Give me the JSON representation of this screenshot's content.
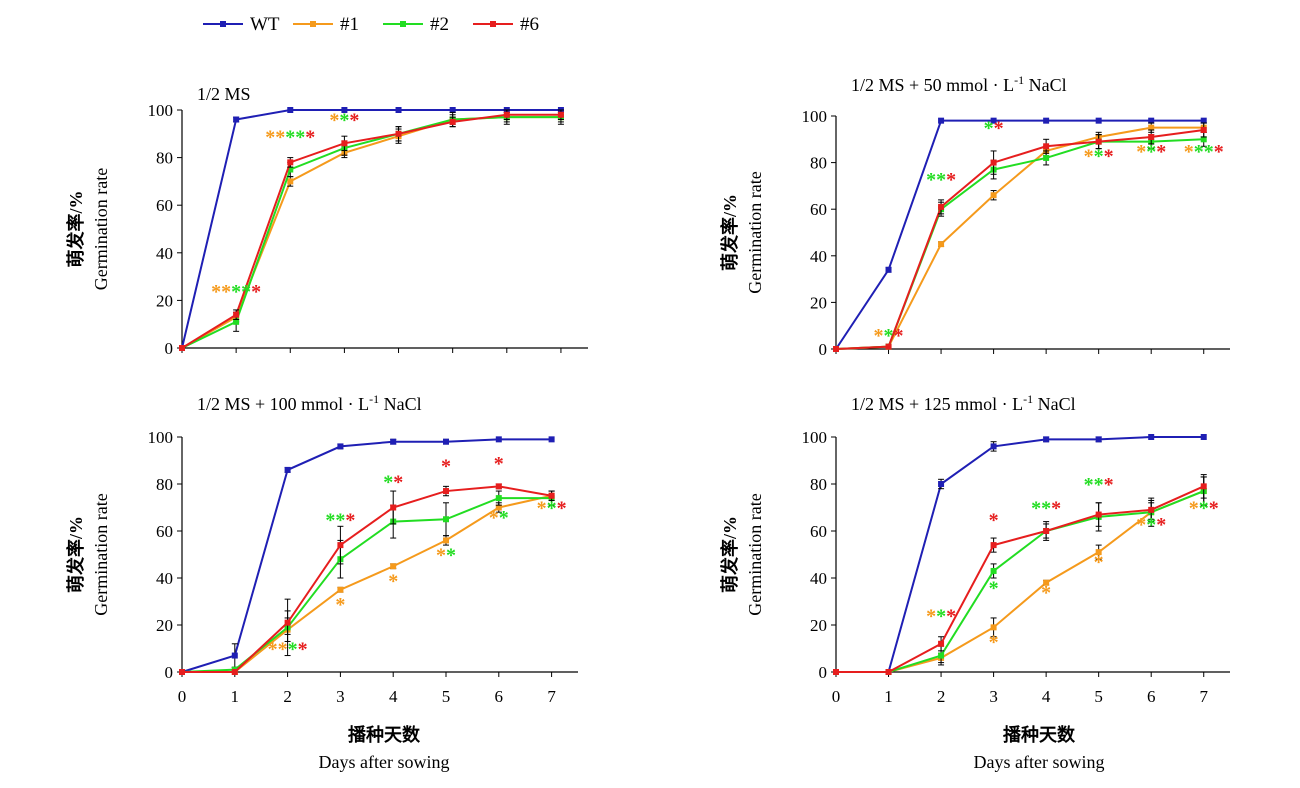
{
  "colors": {
    "WT": "#1f1fb4",
    "#1": "#f59a1c",
    "#2": "#22dd22",
    "#6": "#e61e1e",
    "axis": "#000000"
  },
  "legend": [
    {
      "name": "WT",
      "color": "#1f1fb4"
    },
    {
      "name": "#1",
      "color": "#f59a1c"
    },
    {
      "name": "#2",
      "color": "#22dd22"
    },
    {
      "name": "#6",
      "color": "#e61e1e"
    }
  ],
  "axis_text": {
    "ylabel_cn": "萌发率/%",
    "ylabel_en": "Germination rate",
    "xlabel_cn": "播种天数",
    "xlabel_en": "Days after sowing"
  },
  "chart_data": [
    {
      "type": "line",
      "title": "1/2 MS",
      "x": [
        0,
        1,
        2,
        3,
        4,
        5,
        6,
        7
      ],
      "xlim": [
        0,
        7.5
      ],
      "ylim": [
        0,
        100
      ],
      "yticks": [
        0,
        20,
        40,
        60,
        80,
        100
      ],
      "xticks_labeled": false,
      "series": [
        {
          "name": "WT",
          "values": [
            0,
            96,
            100,
            100,
            100,
            100,
            100,
            100
          ],
          "err": [
            0,
            1,
            0,
            0,
            0,
            0,
            0,
            0
          ]
        },
        {
          "name": "#1",
          "values": [
            0,
            13,
            70,
            82,
            89,
            96,
            97,
            97
          ],
          "err": [
            0,
            2,
            2,
            2,
            3,
            2,
            2,
            2
          ]
        },
        {
          "name": "#2",
          "values": [
            0,
            11,
            75,
            84,
            90,
            96,
            97,
            97
          ],
          "err": [
            0,
            4,
            3,
            3,
            3,
            3,
            3,
            3
          ]
        },
        {
          "name": "#6",
          "values": [
            0,
            14,
            78,
            86,
            90,
            95,
            98,
            98
          ],
          "err": [
            0,
            2,
            2,
            3,
            3,
            2,
            2,
            2
          ]
        }
      ],
      "annotations": [
        {
          "x": 1,
          "y": 21,
          "marks": [
            [
              "#1",
              "**"
            ],
            [
              "#2",
              "**"
            ],
            [
              "#6",
              "*"
            ]
          ]
        },
        {
          "x": 2,
          "y": 86,
          "marks": [
            [
              "#1",
              "**"
            ],
            [
              "#2",
              "**"
            ],
            [
              "#6",
              "*"
            ]
          ]
        },
        {
          "x": 3,
          "y": 93,
          "marks": [
            [
              "#1",
              "*"
            ],
            [
              "#2",
              "*"
            ],
            [
              "#6",
              "*"
            ]
          ]
        }
      ]
    },
    {
      "type": "line",
      "title": "1/2 MS + 50 mmol · L-1 NaCl",
      "title_main": "1/2 MS + 50 mmol · L",
      "title_sup": "-1",
      "title_end": " NaCl",
      "x": [
        0,
        1,
        2,
        3,
        4,
        5,
        6,
        7
      ],
      "xlim": [
        0,
        7.5
      ],
      "ylim": [
        0,
        100
      ],
      "yticks": [
        0,
        20,
        40,
        60,
        80,
        100
      ],
      "xticks_labeled": false,
      "series": [
        {
          "name": "WT",
          "values": [
            0,
            34,
            98,
            98,
            98,
            98,
            98,
            98
          ],
          "err": [
            0,
            1,
            0,
            0,
            0,
            0,
            0,
            0
          ]
        },
        {
          "name": "#1",
          "values": [
            0,
            1,
            45,
            66,
            85,
            91,
            95,
            95
          ],
          "err": [
            0,
            0,
            1,
            2,
            2,
            2,
            2,
            2
          ]
        },
        {
          "name": "#2",
          "values": [
            0,
            1,
            60,
            77,
            82,
            89,
            89,
            90
          ],
          "err": [
            0,
            0,
            3,
            4,
            3,
            3,
            3,
            3
          ]
        },
        {
          "name": "#6",
          "values": [
            0,
            1,
            61,
            80,
            87,
            89,
            91,
            94
          ],
          "err": [
            0,
            0,
            3,
            5,
            3,
            3,
            3,
            3
          ]
        }
      ],
      "annotations": [
        {
          "x": 1,
          "y": 3,
          "marks": [
            [
              "#1",
              "*"
            ],
            [
              "#2",
              "*"
            ],
            [
              "#6",
              "*"
            ]
          ]
        },
        {
          "x": 2,
          "y": 70,
          "marks": [
            [
              "#1",
              ""
            ],
            [
              "#2",
              "**"
            ],
            [
              "#6",
              "*"
            ]
          ]
        },
        {
          "x": 3,
          "y": 92,
          "marks": [
            [
              "#1",
              ""
            ],
            [
              "#2",
              "*"
            ],
            [
              "#6",
              "*"
            ]
          ]
        },
        {
          "x": 5,
          "y": 80,
          "marks": [
            [
              "#1",
              "*"
            ],
            [
              "#2",
              "*"
            ],
            [
              "#6",
              "*"
            ]
          ]
        },
        {
          "x": 6,
          "y": 82,
          "marks": [
            [
              "#1",
              "*"
            ],
            [
              "#2",
              "*"
            ],
            [
              "#6",
              "*"
            ]
          ]
        },
        {
          "x": 7,
          "y": 82,
          "marks": [
            [
              "#1",
              "*"
            ],
            [
              "#2",
              "**"
            ],
            [
              "#6",
              "*"
            ]
          ]
        }
      ]
    },
    {
      "type": "line",
      "title": "1/2 MS + 100 mmol · L-1 NaCl",
      "title_main": "1/2 MS + 100 mmol · L",
      "title_sup": "-1",
      "title_end": " NaCl",
      "x": [
        0,
        1,
        2,
        3,
        4,
        5,
        6,
        7
      ],
      "xlim": [
        0,
        7.5
      ],
      "ylim": [
        0,
        100
      ],
      "yticks": [
        0,
        20,
        40,
        60,
        80,
        100
      ],
      "xticks_labeled": true,
      "series": [
        {
          "name": "WT",
          "values": [
            0,
            7,
            86,
            96,
            98,
            98,
            99,
            99
          ],
          "err": [
            0,
            5,
            1,
            1,
            1,
            1,
            0,
            0
          ]
        },
        {
          "name": "#1",
          "values": [
            0,
            0,
            18,
            35,
            45,
            56,
            70,
            75
          ],
          "err": [
            0,
            0,
            5,
            1,
            1,
            2,
            2,
            2
          ]
        },
        {
          "name": "#2",
          "values": [
            0,
            1,
            19,
            48,
            64,
            65,
            74,
            74
          ],
          "err": [
            0,
            1,
            12,
            8,
            7,
            7,
            3,
            3
          ]
        },
        {
          "name": "#6",
          "values": [
            0,
            0,
            21,
            54,
            70,
            77,
            79,
            75
          ],
          "err": [
            0,
            0,
            5,
            8,
            7,
            2,
            1,
            2
          ]
        }
      ],
      "annotations": [
        {
          "x": 2,
          "y": 7,
          "marks": [
            [
              "#1",
              "**"
            ],
            [
              "#2",
              "*"
            ],
            [
              "#6",
              "*"
            ]
          ]
        },
        {
          "x": 3,
          "y": 62,
          "marks": [
            [
              "#1",
              ""
            ],
            [
              "#2",
              "**"
            ],
            [
              "#6",
              "*"
            ]
          ]
        },
        {
          "x": 3,
          "y": 26,
          "marks": [
            [
              "#1",
              "*"
            ]
          ]
        },
        {
          "x": 4,
          "y": 78,
          "marks": [
            [
              "#1",
              ""
            ],
            [
              "#2",
              "*"
            ],
            [
              "#6",
              "*"
            ]
          ]
        },
        {
          "x": 4,
          "y": 36,
          "marks": [
            [
              "#1",
              "*"
            ]
          ]
        },
        {
          "x": 5,
          "y": 85,
          "marks": [
            [
              "#6",
              "*"
            ]
          ]
        },
        {
          "x": 5,
          "y": 47,
          "marks": [
            [
              "#1",
              "*"
            ],
            [
              "#2",
              "*"
            ]
          ]
        },
        {
          "x": 6,
          "y": 86,
          "marks": [
            [
              "#6",
              "*"
            ]
          ]
        },
        {
          "x": 6,
          "y": 63,
          "marks": [
            [
              "#1",
              "*"
            ],
            [
              "#2",
              "*"
            ]
          ]
        },
        {
          "x": 7,
          "y": 67,
          "marks": [
            [
              "#1",
              "*"
            ],
            [
              "#2",
              "*"
            ],
            [
              "#6",
              "*"
            ]
          ]
        }
      ]
    },
    {
      "type": "line",
      "title": "1/2 MS + 125 mmol · L-1 NaCl",
      "title_main": "1/2 MS + 125 mmol · L",
      "title_sup": "-1",
      "title_end": " NaCl",
      "x": [
        0,
        1,
        2,
        3,
        4,
        5,
        6,
        7
      ],
      "xlim": [
        0,
        7.5
      ],
      "ylim": [
        0,
        100
      ],
      "yticks": [
        0,
        20,
        40,
        60,
        80,
        100
      ],
      "xticks_labeled": true,
      "series": [
        {
          "name": "WT",
          "values": [
            0,
            0,
            80,
            96,
            99,
            99,
            100,
            100
          ],
          "err": [
            0,
            0,
            2,
            2,
            1,
            1,
            0,
            0
          ]
        },
        {
          "name": "#1",
          "values": [
            0,
            0,
            6,
            19,
            38,
            51,
            68,
            77
          ],
          "err": [
            0,
            0,
            2,
            4,
            1,
            3,
            4,
            6
          ]
        },
        {
          "name": "#2",
          "values": [
            0,
            0,
            7,
            43,
            60,
            66,
            68,
            77
          ],
          "err": [
            0,
            0,
            4,
            3,
            4,
            6,
            6,
            6
          ]
        },
        {
          "name": "#6",
          "values": [
            0,
            0,
            12,
            54,
            60,
            67,
            69,
            79
          ],
          "err": [
            0,
            0,
            3,
            3,
            3,
            5,
            4,
            5
          ]
        }
      ],
      "annotations": [
        {
          "x": 2,
          "y": 21,
          "marks": [
            [
              "#1",
              "*"
            ],
            [
              "#2",
              "*"
            ],
            [
              "#6",
              "*"
            ]
          ]
        },
        {
          "x": 3,
          "y": 62,
          "marks": [
            [
              "#6",
              "*"
            ]
          ]
        },
        {
          "x": 3,
          "y": 33,
          "marks": [
            [
              "#2",
              "*"
            ]
          ]
        },
        {
          "x": 3,
          "y": 10,
          "marks": [
            [
              "#1",
              "*"
            ]
          ]
        },
        {
          "x": 4,
          "y": 67,
          "marks": [
            [
              "#2",
              "**"
            ],
            [
              "#6",
              "*"
            ]
          ]
        },
        {
          "x": 4,
          "y": 31,
          "marks": [
            [
              "#1",
              "*"
            ]
          ]
        },
        {
          "x": 5,
          "y": 77,
          "marks": [
            [
              "#2",
              "**"
            ],
            [
              "#6",
              "*"
            ]
          ]
        },
        {
          "x": 5,
          "y": 44,
          "marks": [
            [
              "#1",
              "*"
            ]
          ]
        },
        {
          "x": 6,
          "y": 60,
          "marks": [
            [
              "#1",
              "*"
            ],
            [
              "#2",
              "*"
            ],
            [
              "#6",
              "*"
            ]
          ]
        },
        {
          "x": 7,
          "y": 67,
          "marks": [
            [
              "#1",
              "*"
            ],
            [
              "#2",
              "*"
            ],
            [
              "#6",
              "*"
            ]
          ]
        }
      ]
    }
  ]
}
